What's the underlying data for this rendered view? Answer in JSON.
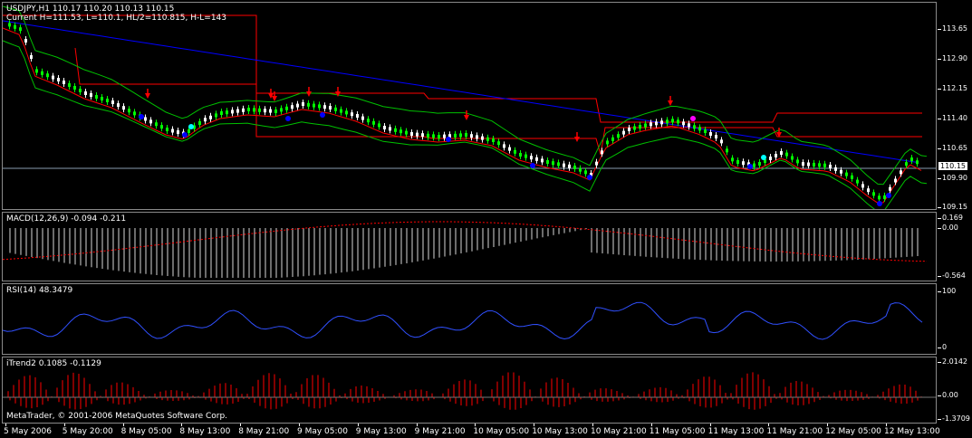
{
  "main": {
    "title": "USDJPY,H1  110.17 110.20 110.13 110.15",
    "subtitle": "Current H=111.53, L=110.1, HL/2=110.815, H-L=143",
    "ticks": [
      "113.65",
      "112.90",
      "112.15",
      "111.40",
      "110.65",
      "109.90",
      "109.15"
    ],
    "current_price": "110.15",
    "colors": {
      "bull": "#ffffff",
      "bear": "#00ff00",
      "ma_blue": "#0000ff",
      "env_red": "#ff0000",
      "band_green": "#00c000",
      "arrow_down": "#ff0000",
      "arrow_up": "#0000ff"
    }
  },
  "macd": {
    "label": "MACD(12,26,9) -0.094 -0.211",
    "ticks": [
      "0.169",
      "0.00",
      "-0.564"
    ]
  },
  "rsi": {
    "label": "RSI(14) 48.3479",
    "ticks": [
      "100",
      "0"
    ]
  },
  "itrend": {
    "label": "iTrend2 0.1085 -0.1129",
    "ticks": [
      "2.0142",
      "0.00",
      "-1.3709"
    ],
    "copyright": "MetaTrader, © 2001-2006 MetaQuotes Software Corp."
  },
  "time_axis": [
    "5 May 2006",
    "5 May 20:00",
    "8 May 05:00",
    "8 May 13:00",
    "8 May 21:00",
    "9 May 05:00",
    "9 May 13:00",
    "9 May 21:00",
    "10 May 05:00",
    "10 May 13:00",
    "10 May 21:00",
    "11 May 05:00",
    "11 May 13:00",
    "11 May 21:00",
    "12 May 05:00",
    "12 May 13:00"
  ]
}
